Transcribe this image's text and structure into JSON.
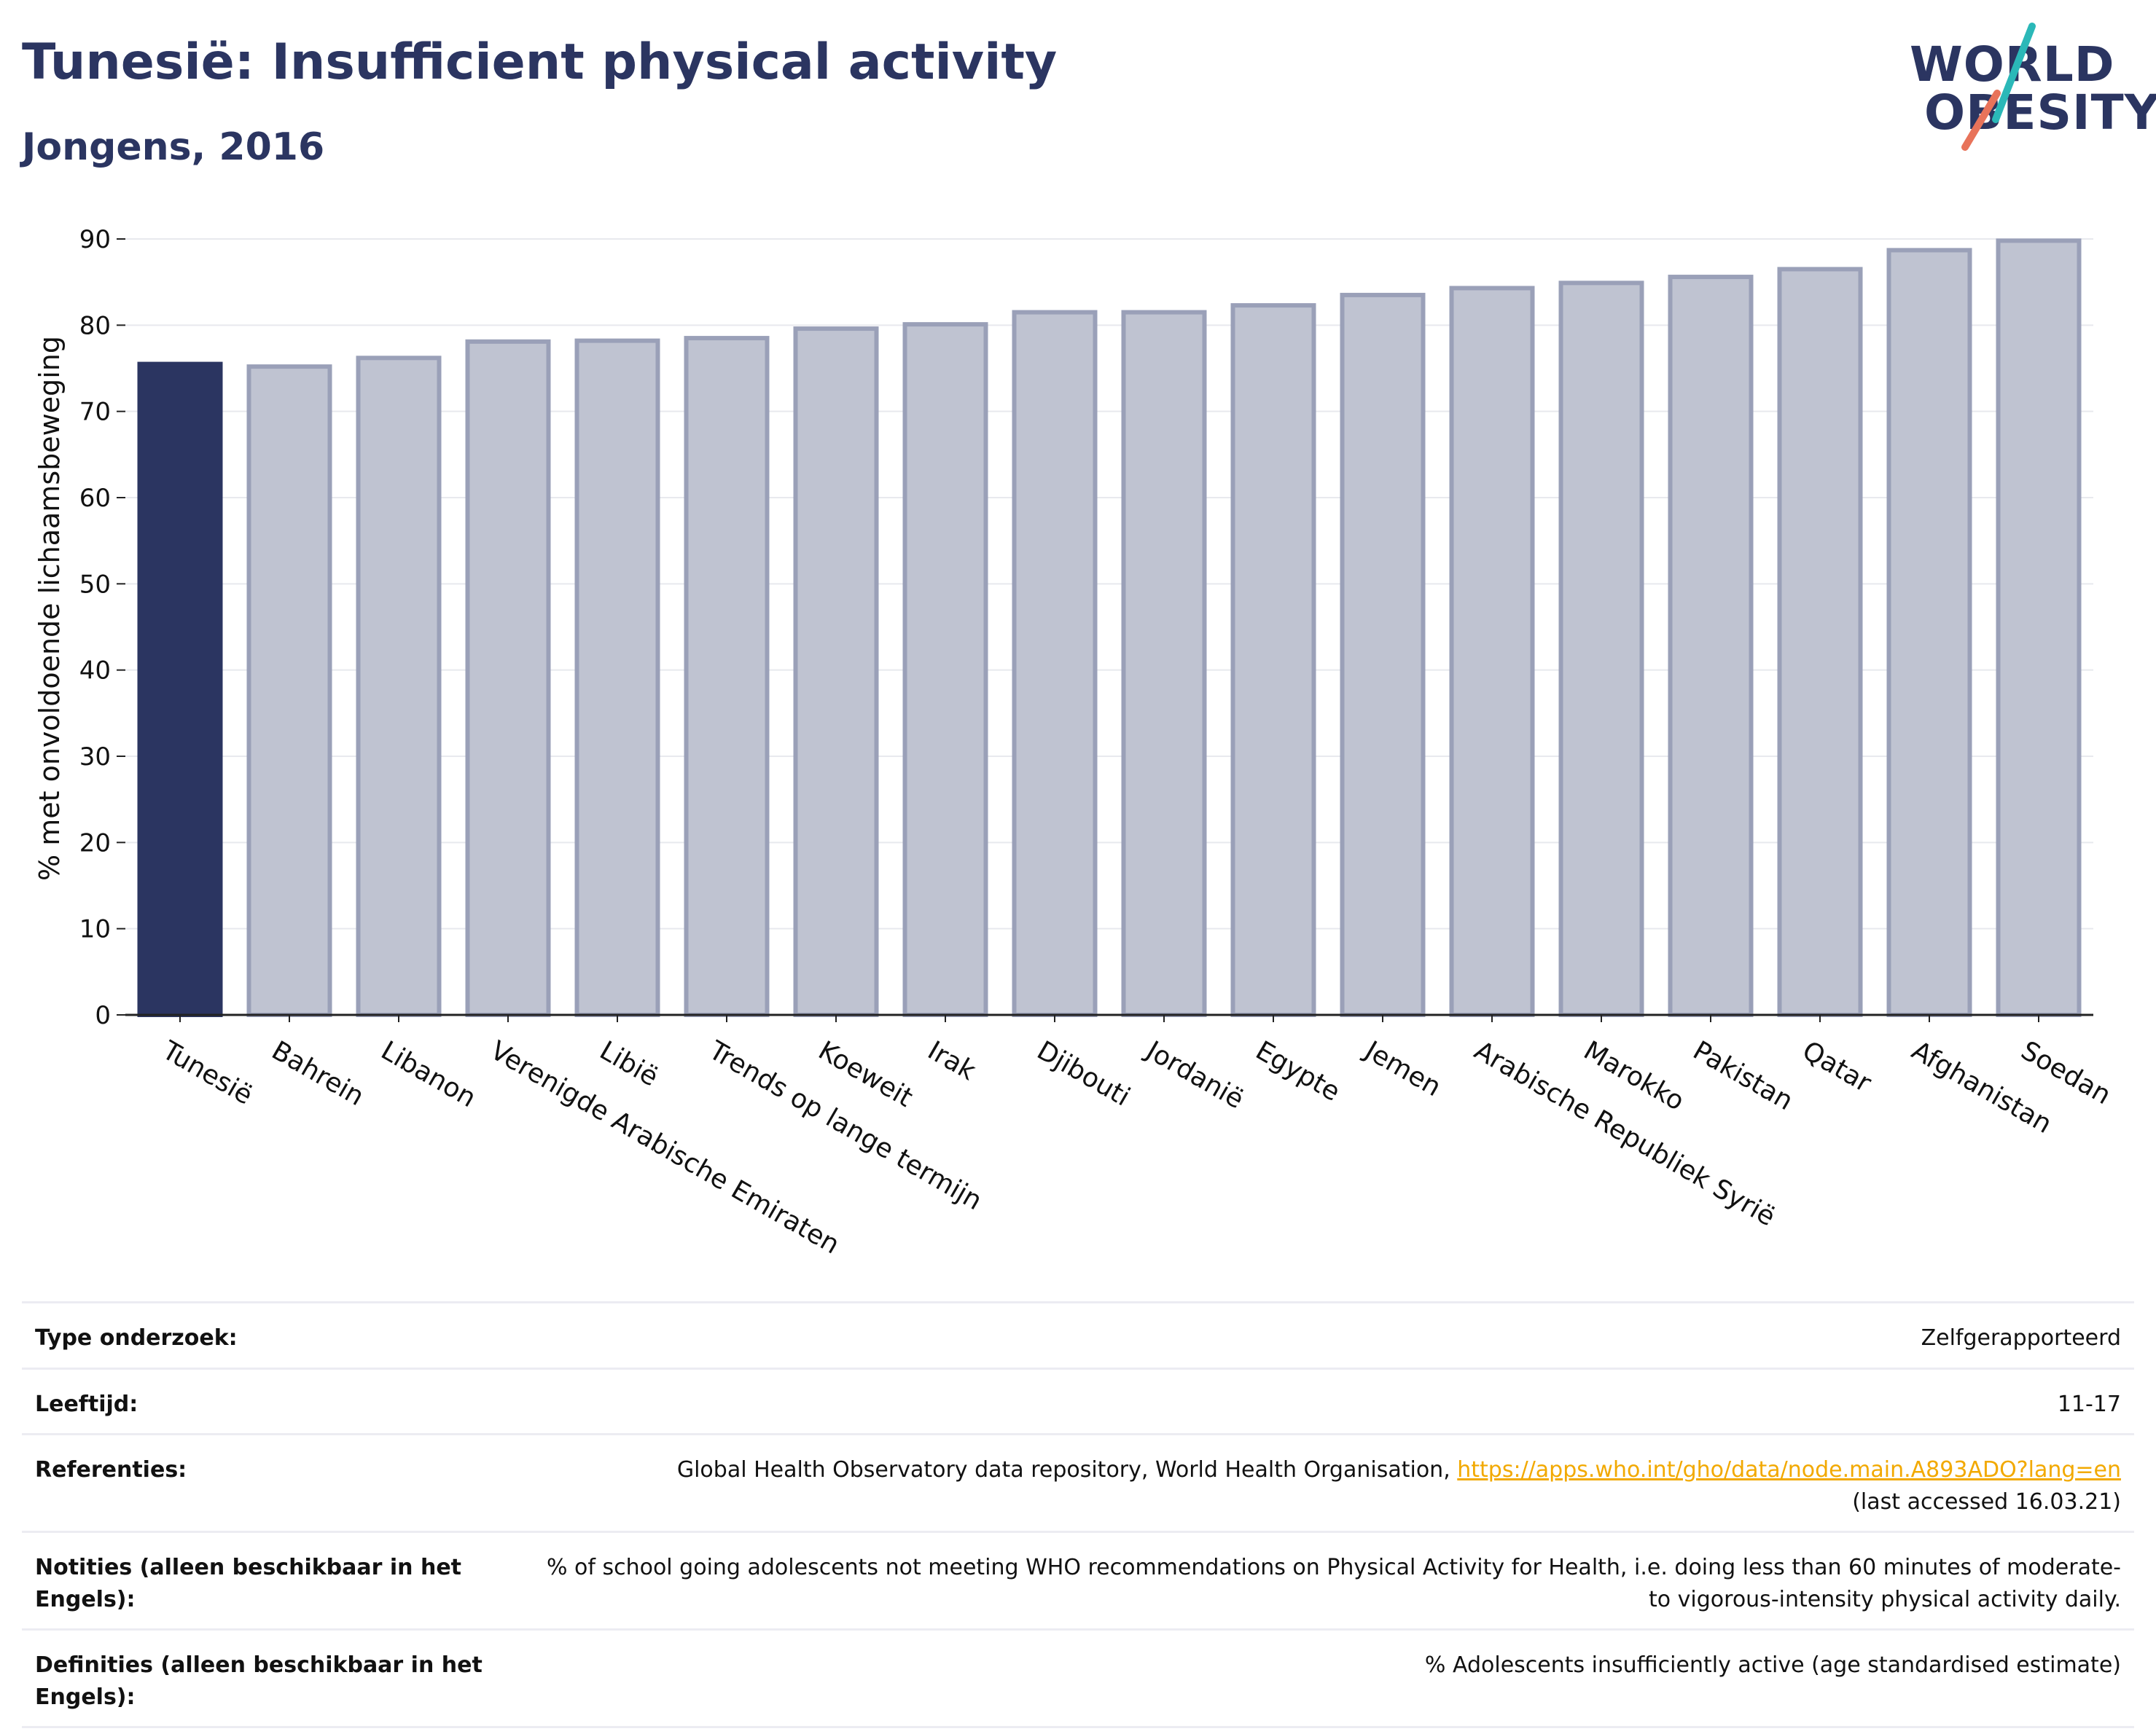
{
  "title": "Tunesië: Insufficient physical activity",
  "subtitle": "Jongens, 2016",
  "logo": {
    "line1": "WORLD",
    "line2": "OBESITY",
    "slash_colors": [
      "#2bb8b8",
      "#e8735a"
    ]
  },
  "colors": {
    "highlight": "#2b3561",
    "bar": "#bfc3d1",
    "bar_border": "#9aa0b8",
    "accent_link": "#f2a900"
  },
  "chart_data": {
    "type": "bar",
    "title": "Tunesië: Insufficient physical activity",
    "subtitle": "Jongens, 2016",
    "xlabel": "",
    "ylabel": "% met onvoldoende lichaamsbeweging",
    "ylim": [
      0,
      90
    ],
    "yticks": [
      0,
      10,
      20,
      30,
      40,
      50,
      60,
      70,
      80,
      90
    ],
    "grid": true,
    "highlight": "Tunesië",
    "categories": [
      "Tunesië",
      "Bahrein",
      "Libanon",
      "Verenigde Arabische Emiraten",
      "Libië",
      "Trends op lange termijn",
      "Koeweit",
      "Irak",
      "Djibouti",
      "Jordanië",
      "Egypte",
      "Jemen",
      "Arabische Republiek Syrië",
      "Marokko",
      "Pakistan",
      "Qatar",
      "Afghanistan",
      "Soedan"
    ],
    "values": [
      75.5,
      75.2,
      76.2,
      78.1,
      78.2,
      78.5,
      79.6,
      80.1,
      81.5,
      81.5,
      82.3,
      83.5,
      84.3,
      84.9,
      85.6,
      86.5,
      88.7,
      89.8
    ]
  },
  "meta": [
    {
      "key": "Type onderzoek:",
      "value": "Zelfgerapporteerd"
    },
    {
      "key": "Leeftijd:",
      "value": "11-17"
    },
    {
      "key": "Referenties:",
      "value": "Global Health Observatory data repository, World Health Organisation, ",
      "link": "https://apps.who.int/gho/data/node.main.A893ADO?lang=en",
      "suffix": "(last accessed 16.03.21)"
    },
    {
      "key": "Notities (alleen beschikbaar in het Engels):",
      "value": "% of school going adolescents not meeting WHO recommendations on Physical Activity for Health, i.e. doing less than 60 minutes of moderate- to vigorous-intensity physical activity daily."
    },
    {
      "key": "Definities (alleen beschikbaar in het Engels):",
      "value": "% Adolescents insufficiently active (age standardised estimate)"
    }
  ]
}
